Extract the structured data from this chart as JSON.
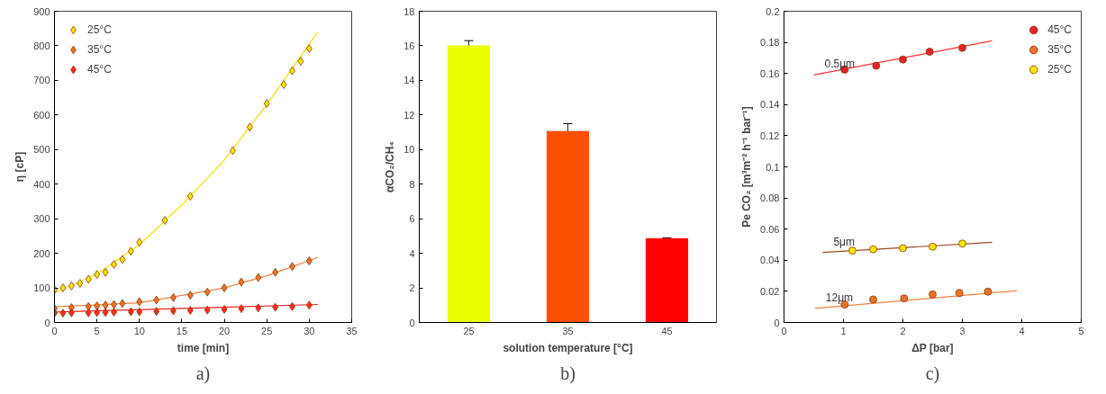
{
  "chart_data": [
    {
      "type": "scatter",
      "xlabel": "time [min]",
      "ylabel": "η [cP]",
      "xlim": [
        0,
        35
      ],
      "xticks": [
        0,
        5,
        10,
        15,
        20,
        25,
        30,
        35
      ],
      "ylim": [
        0,
        900
      ],
      "yticks": [
        0,
        100,
        200,
        300,
        400,
        500,
        600,
        700,
        800,
        900
      ],
      "legend": "top left",
      "marker": "diamond",
      "grid": false,
      "annotations": [
        "a)"
      ],
      "series": [
        {
          "name": "25°C",
          "color": "#f5e50a",
          "x": [
            0,
            1,
            2,
            3,
            4,
            5,
            6,
            7,
            8,
            9,
            10,
            13,
            16,
            21,
            23,
            25,
            27,
            28,
            29,
            30
          ],
          "values": [
            95,
            100,
            106,
            113,
            125,
            139,
            145,
            168,
            182,
            206,
            232,
            295,
            365,
            497,
            565,
            633,
            688,
            728,
            755,
            792
          ]
        },
        {
          "name": "35°C",
          "color": "#e8742a",
          "x": [
            0,
            2,
            4,
            5,
            6,
            7,
            8,
            10,
            12,
            14,
            16,
            18,
            20,
            22,
            24,
            26,
            28,
            30
          ],
          "values": [
            40,
            43,
            46,
            48,
            50,
            52,
            55,
            60,
            65,
            72,
            79,
            88,
            100,
            117,
            130,
            145,
            162,
            178
          ]
        },
        {
          "name": "45°C",
          "color": "#ff2a1a",
          "x": [
            0,
            1,
            2,
            4,
            5,
            6,
            7,
            9,
            10,
            12,
            14,
            16,
            18,
            20,
            22,
            24,
            26,
            28,
            30
          ],
          "values": [
            27,
            27,
            28,
            28,
            29,
            29,
            30,
            31,
            31,
            32,
            34,
            35,
            36,
            38,
            40,
            42,
            44,
            46,
            50
          ]
        },
        {
          "type": "line",
          "marker": "none",
          "color": "#f0e000",
          "x": [
            0,
            5,
            10,
            15,
            20,
            25,
            31
          ],
          "values": [
            85,
            140,
            225,
            340,
            470,
            630,
            840
          ]
        },
        {
          "type": "line",
          "marker": "none",
          "color": "#f08040",
          "x": [
            0,
            10,
            20,
            25,
            31
          ],
          "values": [
            45,
            57,
            100,
            135,
            188
          ]
        },
        {
          "type": "line",
          "marker": "none",
          "color": "#e82020",
          "x": [
            0,
            31
          ],
          "values": [
            30,
            52
          ]
        }
      ]
    },
    {
      "type": "bar",
      "xlabel": "solution temperature [°C]",
      "ylabel": "αCO₂/CH₄",
      "categories": [
        "25",
        "35",
        "45"
      ],
      "values": [
        16.0,
        11.05,
        4.85
      ],
      "colors": [
        "#eaff00",
        "#fa5000",
        "#ff0000"
      ],
      "errors": [
        0.3,
        0.45,
        0.05
      ],
      "ylim": [
        0,
        18
      ],
      "yticks": [
        0,
        2,
        4,
        6,
        8,
        10,
        12,
        14,
        16,
        18
      ],
      "grid": false,
      "annotations": [
        "b)"
      ]
    },
    {
      "type": "scatter",
      "xlabel": "ΔP [bar]",
      "ylabel": "Pe CO₂ [m³m⁻² h⁻¹ bar⁻¹]",
      "xlim": [
        0,
        5
      ],
      "xticks": [
        0,
        1,
        2,
        3,
        4,
        5
      ],
      "ylim": [
        0,
        0.2
      ],
      "yticks": [
        0,
        0.02,
        0.04,
        0.06,
        0.08,
        {
          "value": 0.1,
          "label": "0.1"
        },
        0.12,
        0.14,
        0.16,
        0.18,
        {
          "value": 0.2,
          "label": "0.2"
        }
      ],
      "legend": "top right",
      "marker": "circle",
      "grid": false,
      "annotations": [
        "c)"
      ],
      "series": [
        {
          "name": "45°C",
          "color": "#e8202a",
          "x": [
            1.02,
            1.55,
            2.0,
            2.45,
            3.0
          ],
          "values": [
            0.1625,
            0.165,
            0.169,
            0.174,
            0.1765
          ]
        },
        {
          "name": "35°C",
          "color": "#e8742a",
          "x": [
            1.02,
            1.5,
            2.02,
            2.5,
            2.95,
            3.43
          ],
          "values": [
            0.0115,
            0.0148,
            0.0155,
            0.018,
            0.019,
            0.0198
          ]
        },
        {
          "name": "25°C",
          "color": "#f5e50a",
          "x": [
            1.15,
            1.5,
            2.0,
            2.5,
            3.0
          ],
          "values": [
            0.0462,
            0.047,
            0.0477,
            0.0487,
            0.0507
          ]
        },
        {
          "type": "line",
          "marker": "none",
          "name": "0.5μm",
          "color": "#ff3030",
          "x": [
            0.5,
            3.5
          ],
          "values": [
            0.159,
            0.181
          ]
        },
        {
          "type": "line",
          "marker": "none",
          "name": "5μm",
          "color": "#9a4a20",
          "x": [
            0.65,
            3.5
          ],
          "values": [
            0.045,
            0.0515
          ]
        },
        {
          "type": "line",
          "marker": "none",
          "name": "12μm",
          "color": "#f08040",
          "x": [
            0.52,
            3.92
          ],
          "values": [
            0.009,
            0.0205
          ]
        }
      ]
    }
  ]
}
